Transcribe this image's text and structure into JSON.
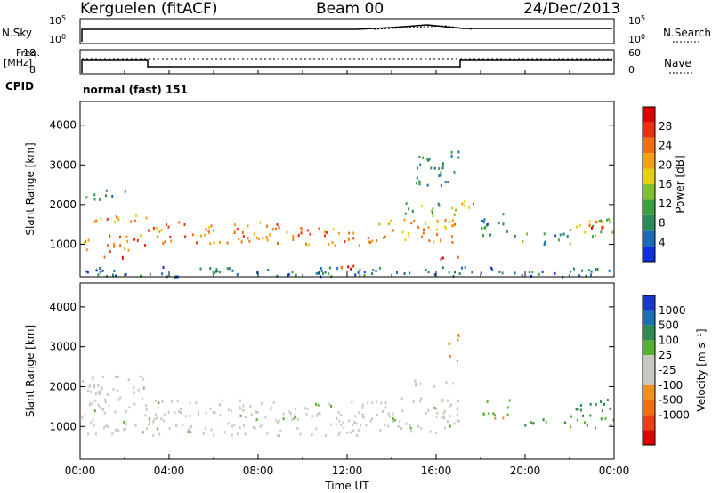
{
  "header": {
    "station": "Kerguelen (fitACF)",
    "beam": "Beam 00",
    "date": "24/Dec/2013"
  },
  "strip": {
    "nsky_label": "N.Sky",
    "nsky_ticks": [
      "10^5",
      "10^0"
    ],
    "nsearch_label": "N.Search",
    "nsearch_ticks": [
      "10^5",
      "10^0"
    ],
    "freq_label": "Freq.",
    "freq_unit": "[MHz]",
    "freq_ticks": [
      "18",
      "8"
    ],
    "nave_label": "Nave",
    "nave_ticks": [
      "60",
      "0"
    ],
    "cpid_label": "CPID",
    "cpid_value": "normal (fast) 151"
  },
  "chart_data": [
    {
      "type": "heatmap",
      "name": "power",
      "ylabel": "Slant Range [km]",
      "yticks": [
        1000,
        2000,
        3000,
        4000
      ],
      "ylim": [
        180,
        4600
      ],
      "xlim": [
        0,
        24
      ],
      "colorbar": {
        "label": "Power [dB]",
        "ticks": [
          "4",
          "8",
          "12",
          "16",
          "20",
          "24",
          "28"
        ],
        "colors": [
          "#1030e0",
          "#1a6ab8",
          "#2b8a5a",
          "#3aa040",
          "#80c030",
          "#e8d010",
          "#f0a010",
          "#f07010",
          "#e83010",
          "#e00000"
        ]
      },
      "regions": [
        {
          "t0": 0.0,
          "t1": 3.0,
          "r0": 850,
          "r1": 1250,
          "v": 22
        },
        {
          "t0": 0.0,
          "t1": 3.0,
          "r0": 1500,
          "r1": 1750,
          "v": 20
        },
        {
          "t0": 0.0,
          "t1": 2.0,
          "r0": 2150,
          "r1": 2400,
          "v": 10
        },
        {
          "t0": 1.0,
          "t1": 2.0,
          "r0": 520,
          "r1": 720,
          "v": 25
        },
        {
          "t0": 3.0,
          "t1": 9.0,
          "r0": 1050,
          "r1": 1600,
          "v": 22
        },
        {
          "t0": 9.0,
          "t1": 13.0,
          "r0": 1000,
          "r1": 1450,
          "v": 22
        },
        {
          "t0": 13.0,
          "t1": 17.0,
          "r0": 1050,
          "r1": 1650,
          "v": 20
        },
        {
          "t0": 11.5,
          "t1": 13.0,
          "r0": 300,
          "r1": 500,
          "v": 24
        },
        {
          "t0": 14.5,
          "t1": 17.0,
          "r0": 1750,
          "r1": 2100,
          "v": 12
        },
        {
          "t0": 15.0,
          "t1": 17.0,
          "r0": 2500,
          "r1": 3400,
          "v": 8
        },
        {
          "t0": 16.0,
          "t1": 17.0,
          "r0": 650,
          "r1": 850,
          "v": 26
        },
        {
          "t0": 17.0,
          "t1": 17.7,
          "r0": 1900,
          "r1": 2300,
          "v": 14
        },
        {
          "t0": 18.0,
          "t1": 19.3,
          "r0": 1150,
          "r1": 1800,
          "v": 7
        },
        {
          "t0": 19.5,
          "t1": 22.0,
          "r0": 1000,
          "r1": 1300,
          "v": 8
        },
        {
          "t0": 22.0,
          "t1": 24.0,
          "r0": 1200,
          "r1": 1800,
          "v": 14
        },
        {
          "t0": 22.5,
          "t1": 23.5,
          "r0": 1350,
          "r1": 1600,
          "v": 24
        },
        {
          "t0": 0.0,
          "t1": 24.0,
          "r0": 200,
          "r1": 450,
          "v": 6
        }
      ]
    },
    {
      "type": "heatmap",
      "name": "velocity",
      "ylabel": "Slant Range [km]",
      "yticks": [
        1000,
        2000,
        3000,
        4000
      ],
      "ylim": [
        180,
        4600
      ],
      "xlim": [
        0,
        24
      ],
      "xlabel": "Time UT",
      "xticks": [
        "00:00",
        "04:00",
        "08:00",
        "12:00",
        "16:00",
        "20:00",
        "00:00"
      ],
      "colorbar": {
        "label": "Velocity [m s⁻¹]",
        "ticks": [
          "1000",
          "500",
          "100",
          "25",
          "-25",
          "-100",
          "-500",
          "-1000"
        ],
        "colors": [
          "#1838c8",
          "#1a70b0",
          "#2e8a50",
          "#58b030",
          "#c8c8c0",
          "#c8c8c0",
          "#f09020",
          "#f07010",
          "#e84010",
          "#e00000"
        ]
      },
      "regions": [
        {
          "t0": 0.0,
          "t1": 3.0,
          "r0": 800,
          "r1": 2300,
          "v": 0
        },
        {
          "t0": 3.0,
          "t1": 9.0,
          "r0": 800,
          "r1": 1700,
          "v": 0
        },
        {
          "t0": 9.0,
          "t1": 13.0,
          "r0": 800,
          "r1": 1650,
          "v": 0
        },
        {
          "t0": 13.0,
          "t1": 17.0,
          "r0": 850,
          "r1": 1750,
          "v": 0
        },
        {
          "t0": 15.0,
          "t1": 17.0,
          "r0": 2000,
          "r1": 2200,
          "v": 0
        },
        {
          "t0": 16.5,
          "t1": 17.0,
          "r0": 2600,
          "r1": 3400,
          "v": -300
        },
        {
          "t0": 18.0,
          "t1": 19.3,
          "r0": 1300,
          "r1": 1700,
          "v": 60
        },
        {
          "t0": 18.5,
          "t1": 19.0,
          "r0": 1100,
          "r1": 1300,
          "v": -400
        },
        {
          "t0": 19.5,
          "t1": 22.0,
          "r0": 1050,
          "r1": 1250,
          "v": 80
        },
        {
          "t0": 22.0,
          "t1": 24.0,
          "r0": 1300,
          "r1": 1700,
          "v": 400
        },
        {
          "t0": 22.0,
          "t1": 24.0,
          "r0": 1000,
          "r1": 1300,
          "v": 90
        }
      ]
    }
  ]
}
